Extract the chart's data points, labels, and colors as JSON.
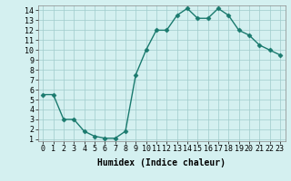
{
  "x": [
    0,
    1,
    2,
    3,
    4,
    5,
    6,
    7,
    8,
    9,
    10,
    11,
    12,
    13,
    14,
    15,
    16,
    17,
    18,
    19,
    20,
    21,
    22,
    23
  ],
  "y": [
    5.5,
    5.5,
    3.0,
    3.0,
    1.8,
    1.3,
    1.1,
    1.1,
    1.8,
    7.5,
    10.0,
    12.0,
    12.0,
    13.5,
    14.2,
    13.2,
    13.2,
    14.2,
    13.5,
    12.0,
    11.5,
    10.5,
    10.0,
    9.5
  ],
  "line_color": "#1a7a6e",
  "marker": "D",
  "marker_size": 2.5,
  "bg_color": "#d4f0f0",
  "grid_color": "#a0cccc",
  "xlabel": "Humidex (Indice chaleur)",
  "xlim": [
    -0.5,
    23.5
  ],
  "ylim": [
    0.8,
    14.5
  ],
  "yticks": [
    1,
    2,
    3,
    4,
    5,
    6,
    7,
    8,
    9,
    10,
    11,
    12,
    13,
    14
  ],
  "xticks": [
    0,
    1,
    2,
    3,
    4,
    5,
    6,
    7,
    8,
    9,
    10,
    11,
    12,
    13,
    14,
    15,
    16,
    17,
    18,
    19,
    20,
    21,
    22,
    23
  ],
  "xlabel_fontsize": 7,
  "tick_fontsize": 6,
  "line_width": 1.0
}
